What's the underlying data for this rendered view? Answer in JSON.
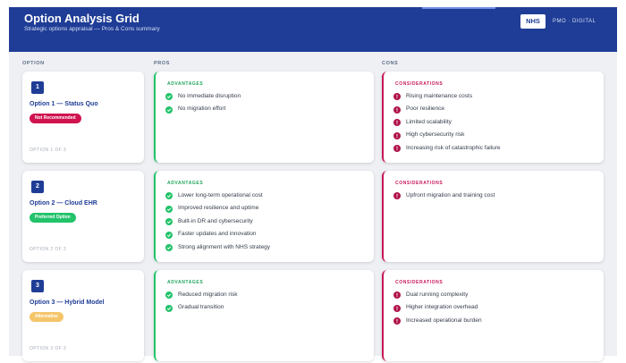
{
  "header": {
    "title": "Option Analysis Grid",
    "subtitle": "Strategic options appraisal — Pros & Cons summary",
    "badge": "NHS",
    "tag": "PMO · DIGITAL"
  },
  "columns": [
    "OPTION",
    "PROS",
    "CONS"
  ],
  "options": [
    {
      "number": "1",
      "name": "Option 1 — Status Quo",
      "status": "Not Recommended",
      "status_kind": "red",
      "footer": "OPTION 1 OF 3",
      "pros_heading": "ADVANTAGES",
      "pros": [
        "No immediate disruption",
        "No migration effort"
      ],
      "cons_heading": "CONSIDERATIONS",
      "cons": [
        "Rising maintenance costs",
        "Poor resilience",
        "Limited scalability",
        "High cybersecurity risk",
        "Increasing risk of catastrophic failure"
      ]
    },
    {
      "number": "2",
      "name": "Option 2 — Cloud EHR",
      "status": "Preferred Option",
      "status_kind": "green",
      "footer": "OPTION 2 OF 3",
      "pros_heading": "ADVANTAGES",
      "pros": [
        "Lower long-term operational cost",
        "Improved resilience and uptime",
        "Built-in DR and cybersecurity",
        "Faster updates and innovation",
        "Strong alignment with NHS strategy"
      ],
      "cons_heading": "CONSIDERATIONS",
      "cons": [
        "Upfront migration and training cost"
      ]
    },
    {
      "number": "3",
      "name": "Option 3 — Hybrid Model",
      "status": "Alternative",
      "status_kind": "amber",
      "footer": "OPTION 3 OF 3",
      "pros_heading": "ADVANTAGES",
      "pros": [
        "Reduced migration risk",
        "Gradual transition"
      ],
      "cons_heading": "CONSIDERATIONS",
      "cons": [
        "Dual running complexity",
        "Higher integration overhead",
        "Increased operational burden"
      ]
    }
  ]
}
